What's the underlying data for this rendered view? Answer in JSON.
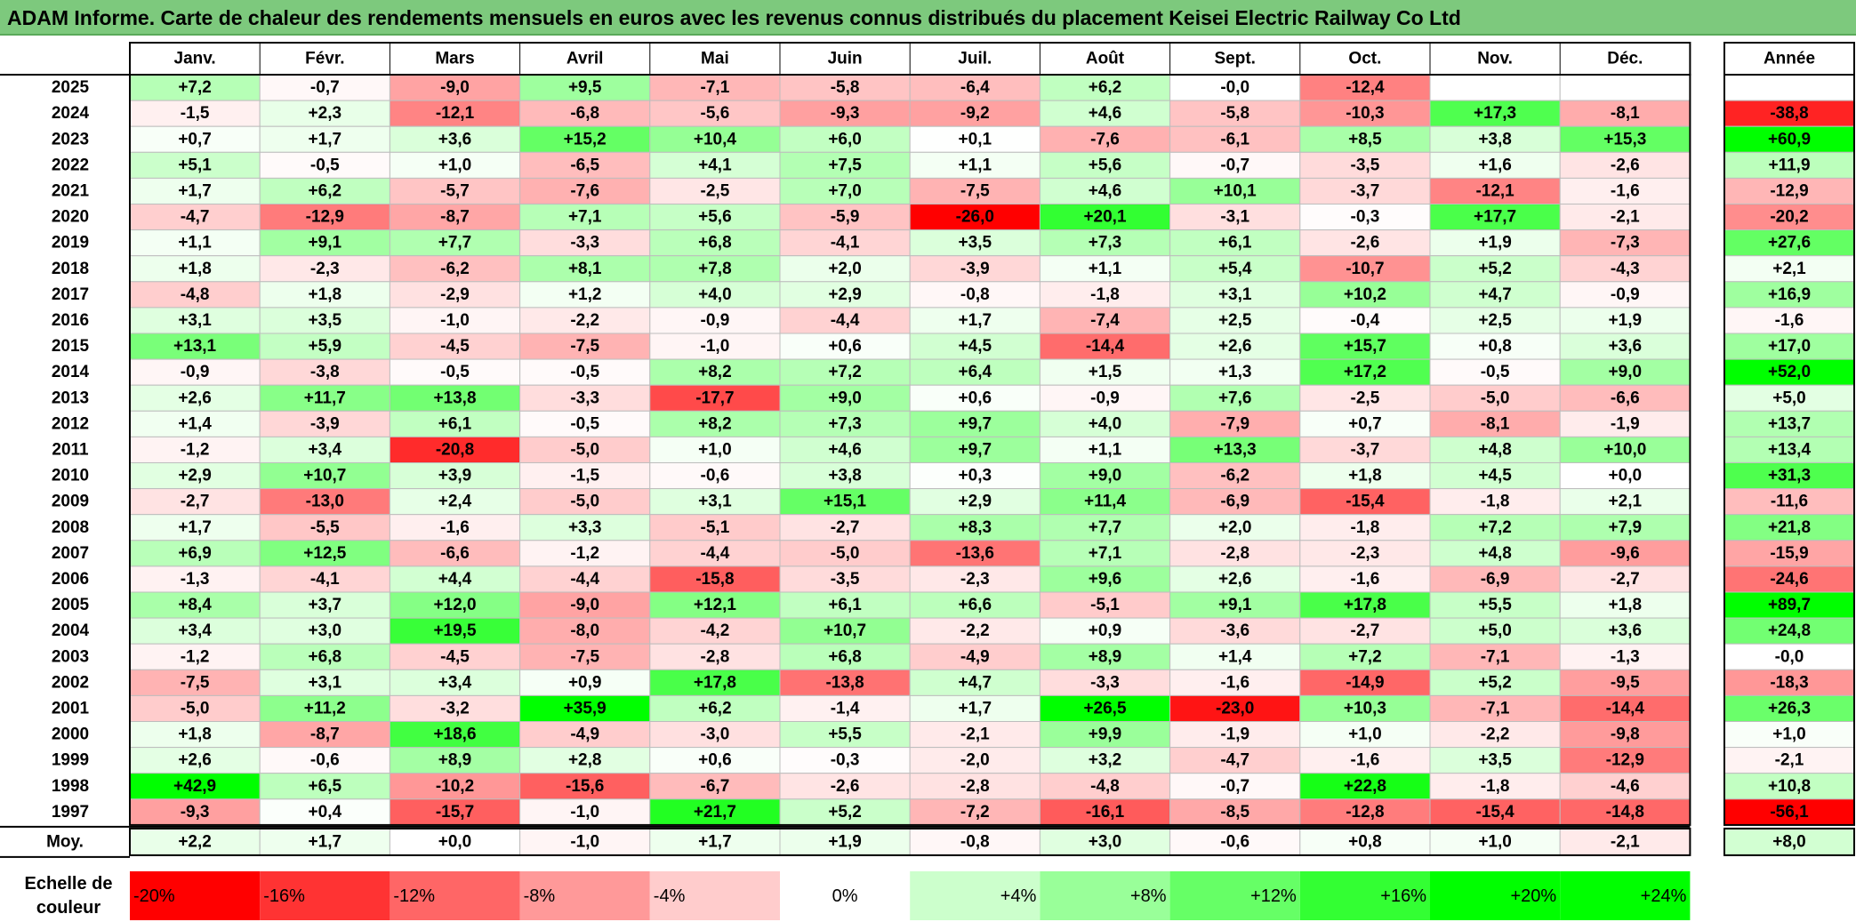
{
  "title": "ADAM Informe. Carte de chaleur des rendements mensuels en euros avec les revenus connus distribués du placement Keisei Electric Railway Co Ltd",
  "chart_data": {
    "type": "heatmap",
    "months": [
      "Janv.",
      "Févr.",
      "Mars",
      "Avril",
      "Mai",
      "Juin",
      "Juil.",
      "Août",
      "Sept.",
      "Oct.",
      "Nov.",
      "Déc."
    ],
    "annual_label": "Année",
    "rows": [
      {
        "year": "2025",
        "values": [
          "+7,2",
          "-0,7",
          "-9,0",
          "+9,5",
          "-7,1",
          "-5,8",
          "-6,4",
          "+6,2",
          "-0,0",
          "-12,4",
          "",
          ""
        ],
        "annual": ""
      },
      {
        "year": "2024",
        "values": [
          "-1,5",
          "+2,3",
          "-12,1",
          "-6,8",
          "-5,6",
          "-9,3",
          "-9,2",
          "+4,6",
          "-5,8",
          "-10,3",
          "+17,3",
          "-8,1"
        ],
        "annual": "-38,8"
      },
      {
        "year": "2023",
        "values": [
          "+0,7",
          "+1,7",
          "+3,6",
          "+15,2",
          "+10,4",
          "+6,0",
          "+0,1",
          "-7,6",
          "-6,1",
          "+8,5",
          "+3,8",
          "+15,3"
        ],
        "annual": "+60,9"
      },
      {
        "year": "2022",
        "values": [
          "+5,1",
          "-0,5",
          "+1,0",
          "-6,5",
          "+4,1",
          "+7,5",
          "+1,1",
          "+5,6",
          "-0,7",
          "-3,5",
          "+1,6",
          "-2,6"
        ],
        "annual": "+11,9"
      },
      {
        "year": "2021",
        "values": [
          "+1,7",
          "+6,2",
          "-5,7",
          "-7,6",
          "-2,5",
          "+7,0",
          "-7,5",
          "+4,6",
          "+10,1",
          "-3,7",
          "-12,1",
          "-1,6"
        ],
        "annual": "-12,9"
      },
      {
        "year": "2020",
        "values": [
          "-4,7",
          "-12,9",
          "-8,7",
          "+7,1",
          "+5,6",
          "-5,9",
          "-26,0",
          "+20,1",
          "-3,1",
          "-0,3",
          "+17,7",
          "-2,1"
        ],
        "annual": "-20,2"
      },
      {
        "year": "2019",
        "values": [
          "+1,1",
          "+9,1",
          "+7,7",
          "-3,3",
          "+6,8",
          "-4,1",
          "+3,5",
          "+7,3",
          "+6,1",
          "-2,6",
          "+1,9",
          "-7,3"
        ],
        "annual": "+27,6"
      },
      {
        "year": "2018",
        "values": [
          "+1,8",
          "-2,3",
          "-6,2",
          "+8,1",
          "+7,8",
          "+2,0",
          "-3,9",
          "+1,1",
          "+5,4",
          "-10,7",
          "+5,2",
          "-4,3"
        ],
        "annual": "+2,1"
      },
      {
        "year": "2017",
        "values": [
          "-4,8",
          "+1,8",
          "-2,9",
          "+1,2",
          "+4,0",
          "+2,9",
          "-0,8",
          "-1,8",
          "+3,1",
          "+10,2",
          "+4,7",
          "-0,9"
        ],
        "annual": "+16,9"
      },
      {
        "year": "2016",
        "values": [
          "+3,1",
          "+3,5",
          "-1,0",
          "-2,2",
          "-0,9",
          "-4,4",
          "+1,7",
          "-7,4",
          "+2,5",
          "-0,4",
          "+2,5",
          "+1,9"
        ],
        "annual": "-1,6"
      },
      {
        "year": "2015",
        "values": [
          "+13,1",
          "+5,9",
          "-4,5",
          "-7,5",
          "-1,0",
          "+0,6",
          "+4,5",
          "-14,4",
          "+2,6",
          "+15,7",
          "+0,8",
          "+3,6"
        ],
        "annual": "+17,0"
      },
      {
        "year": "2014",
        "values": [
          "-0,9",
          "-3,8",
          "-0,5",
          "-0,5",
          "+8,2",
          "+7,2",
          "+6,4",
          "+1,5",
          "+1,3",
          "+17,2",
          "-0,5",
          "+9,0"
        ],
        "annual": "+52,0"
      },
      {
        "year": "2013",
        "values": [
          "+2,6",
          "+11,7",
          "+13,8",
          "-3,3",
          "-17,7",
          "+9,0",
          "+0,6",
          "-0,9",
          "+7,6",
          "-2,5",
          "-5,0",
          "-6,6"
        ],
        "annual": "+5,0"
      },
      {
        "year": "2012",
        "values": [
          "+1,4",
          "-3,9",
          "+6,1",
          "-0,5",
          "+8,2",
          "+7,3",
          "+9,7",
          "+4,0",
          "-7,9",
          "+0,7",
          "-8,1",
          "-1,9"
        ],
        "annual": "+13,7"
      },
      {
        "year": "2011",
        "values": [
          "-1,2",
          "+3,4",
          "-20,8",
          "-5,0",
          "+1,0",
          "+4,6",
          "+9,7",
          "+1,1",
          "+13,3",
          "-3,7",
          "+4,8",
          "+10,0"
        ],
        "annual": "+13,4"
      },
      {
        "year": "2010",
        "values": [
          "+2,9",
          "+10,7",
          "+3,9",
          "-1,5",
          "-0,6",
          "+3,8",
          "+0,3",
          "+9,0",
          "-6,2",
          "+1,8",
          "+4,5",
          "+0,0"
        ],
        "annual": "+31,3"
      },
      {
        "year": "2009",
        "values": [
          "-2,7",
          "-13,0",
          "+2,4",
          "-5,0",
          "+3,1",
          "+15,1",
          "+2,9",
          "+11,4",
          "-6,9",
          "-15,4",
          "-1,8",
          "+2,1"
        ],
        "annual": "-11,6"
      },
      {
        "year": "2008",
        "values": [
          "+1,7",
          "-5,5",
          "-1,6",
          "+3,3",
          "-5,1",
          "-2,7",
          "+8,3",
          "+7,7",
          "+2,0",
          "-1,8",
          "+7,2",
          "+7,9"
        ],
        "annual": "+21,8"
      },
      {
        "year": "2007",
        "values": [
          "+6,9",
          "+12,5",
          "-6,6",
          "-1,2",
          "-4,4",
          "-5,0",
          "-13,6",
          "+7,1",
          "-2,8",
          "-2,3",
          "+4,8",
          "-9,6"
        ],
        "annual": "-15,9"
      },
      {
        "year": "2006",
        "values": [
          "-1,3",
          "-4,1",
          "+4,4",
          "-4,4",
          "-15,8",
          "-3,5",
          "-2,3",
          "+9,6",
          "+2,6",
          "-1,6",
          "-6,9",
          "-2,7"
        ],
        "annual": "-24,6"
      },
      {
        "year": "2005",
        "values": [
          "+8,4",
          "+3,7",
          "+12,0",
          "-9,0",
          "+12,1",
          "+6,1",
          "+6,6",
          "-5,1",
          "+9,1",
          "+17,8",
          "+5,5",
          "+1,8"
        ],
        "annual": "+89,7"
      },
      {
        "year": "2004",
        "values": [
          "+3,4",
          "+3,0",
          "+19,5",
          "-8,0",
          "-4,2",
          "+10,7",
          "-2,2",
          "+0,9",
          "-3,6",
          "-2,7",
          "+5,0",
          "+3,6"
        ],
        "annual": "+24,8"
      },
      {
        "year": "2003",
        "values": [
          "-1,2",
          "+6,8",
          "-4,5",
          "-7,5",
          "-2,8",
          "+6,8",
          "-4,9",
          "+8,9",
          "+1,4",
          "+7,2",
          "-7,1",
          "-1,3"
        ],
        "annual": "-0,0"
      },
      {
        "year": "2002",
        "values": [
          "-7,5",
          "+3,1",
          "+3,4",
          "+0,9",
          "+17,8",
          "-13,8",
          "+4,7",
          "-3,3",
          "-1,6",
          "-14,9",
          "+5,2",
          "-9,5"
        ],
        "annual": "-18,3"
      },
      {
        "year": "2001",
        "values": [
          "-5,0",
          "+11,2",
          "-3,2",
          "+35,9",
          "+6,2",
          "-1,4",
          "+1,7",
          "+26,5",
          "-23,0",
          "+10,3",
          "-7,1",
          "-14,4"
        ],
        "annual": "+26,3"
      },
      {
        "year": "2000",
        "values": [
          "+1,8",
          "-8,7",
          "+18,6",
          "-4,9",
          "-3,0",
          "+5,5",
          "-2,1",
          "+9,9",
          "-1,9",
          "+1,0",
          "-2,2",
          "-9,8"
        ],
        "annual": "+1,0"
      },
      {
        "year": "1999",
        "values": [
          "+2,6",
          "-0,6",
          "+8,9",
          "+2,8",
          "+0,6",
          "-0,3",
          "-2,0",
          "+3,2",
          "-4,7",
          "-1,6",
          "+3,5",
          "-12,9"
        ],
        "annual": "-2,1"
      },
      {
        "year": "1998",
        "values": [
          "+42,9",
          "+6,5",
          "-10,2",
          "-15,6",
          "-6,7",
          "-2,6",
          "-2,8",
          "-4,8",
          "-0,7",
          "+22,8",
          "-1,8",
          "-4,6"
        ],
        "annual": "+10,8"
      },
      {
        "year": "1997",
        "values": [
          "-9,3",
          "+0,4",
          "-15,7",
          "-1,0",
          "+21,7",
          "+5,2",
          "-7,2",
          "-16,1",
          "-8,5",
          "-12,8",
          "-15,4",
          "-14,8"
        ],
        "annual": "-56,1"
      }
    ],
    "average": {
      "label": "Moy.",
      "values": [
        "+2,2",
        "+1,7",
        "+0,0",
        "-1,0",
        "+1,7",
        "+1,9",
        "-0,8",
        "+3,0",
        "-0,6",
        "+0,8",
        "+1,0",
        "-2,1"
      ],
      "annual": "+8,0"
    },
    "scale": {
      "label_line1": "Echelle de",
      "label_line2": "couleur",
      "steps": [
        {
          "label": "-20%",
          "value": -20
        },
        {
          "label": "-16%",
          "value": -16
        },
        {
          "label": "-12%",
          "value": -12
        },
        {
          "label": "-8%",
          "value": -8
        },
        {
          "label": "-4%",
          "value": -4
        },
        {
          "label": "0%",
          "value": 0
        },
        {
          "label": "+4%",
          "value": 4
        },
        {
          "label": "+8%",
          "value": 8
        },
        {
          "label": "+12%",
          "value": 12
        },
        {
          "label": "+16%",
          "value": 16
        },
        {
          "label": "+20%",
          "value": 20
        },
        {
          "label": "+24%",
          "value": 24
        }
      ]
    },
    "colors": {
      "negative_max": "#ff0000",
      "neutral": "#ffffff",
      "positive_max": "#00ff00",
      "title_bar": "#7dc97d"
    }
  }
}
